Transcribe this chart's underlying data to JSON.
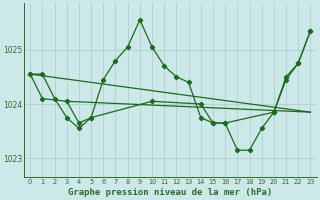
{
  "title": "Graphe pression niveau de la mer (hPa)",
  "bg_color": "#cce8e8",
  "grid_color": "#aacccc",
  "line_color": "#1a6b1a",
  "marker_color": "#1a6b1a",
  "xlim": [
    -0.5,
    23.5
  ],
  "ylim": [
    1022.65,
    1025.85
  ],
  "yticks": [
    1023,
    1024,
    1025
  ],
  "xticks": [
    0,
    1,
    2,
    3,
    4,
    5,
    6,
    7,
    8,
    9,
    10,
    11,
    12,
    13,
    14,
    15,
    16,
    17,
    18,
    19,
    20,
    21,
    22,
    23
  ],
  "series_main": {
    "x": [
      0,
      1,
      2,
      3,
      4,
      5,
      6,
      7,
      8,
      9,
      10,
      11,
      12,
      13,
      14,
      15,
      16,
      17,
      18,
      19,
      20,
      21,
      22,
      23
    ],
    "y": [
      1024.55,
      1024.55,
      1024.1,
      1023.75,
      1023.55,
      1023.75,
      1024.45,
      1024.8,
      1025.05,
      1025.55,
      1025.05,
      1024.7,
      1024.5,
      1024.4,
      1023.75,
      1023.65,
      1023.65,
      1023.15,
      1023.15,
      1023.55,
      1023.85,
      1024.5,
      1024.75,
      1025.35
    ]
  },
  "series_second": {
    "x": [
      0,
      1,
      3,
      4,
      5,
      10,
      14,
      15,
      16,
      20,
      21,
      22,
      23
    ],
    "y": [
      1024.55,
      1024.1,
      1024.05,
      1023.65,
      1023.75,
      1024.05,
      1024.0,
      1023.65,
      1023.65,
      1023.85,
      1024.45,
      1024.75,
      1025.35
    ]
  },
  "series_trend1": {
    "x": [
      0,
      23
    ],
    "y": [
      1024.55,
      1023.85
    ]
  },
  "series_trend2": {
    "x": [
      3,
      23
    ],
    "y": [
      1024.05,
      1023.85
    ]
  },
  "axis_color": "#2d6b2d",
  "tick_color": "#2d6b2d",
  "label_fontsize": 5.5,
  "title_fontsize": 6.5,
  "lw": 0.9,
  "ms": 2.2
}
